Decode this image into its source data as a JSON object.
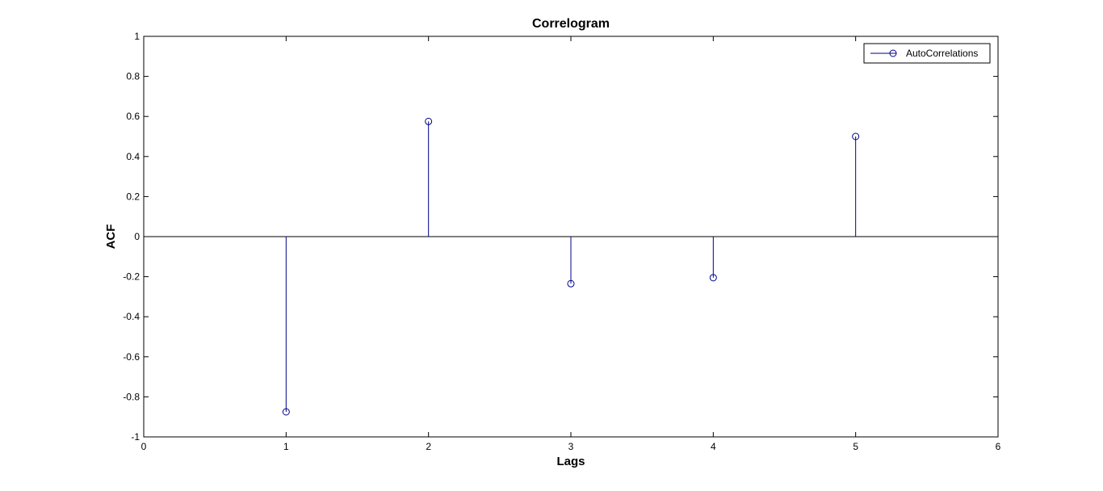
{
  "chart_data": {
    "type": "stem",
    "title": "Correlogram",
    "xlabel": "Lags",
    "ylabel": "ACF",
    "xlim": [
      0,
      6
    ],
    "ylim": [
      -1,
      1
    ],
    "x_ticks": [
      "0",
      "1",
      "2",
      "3",
      "4",
      "5",
      "6"
    ],
    "y_ticks": [
      "1",
      "0.8",
      "0.6",
      "0.4",
      "0.2",
      "0",
      "-0.2",
      "-0.4",
      "-0.6",
      "-0.8",
      "-1"
    ],
    "grid": false,
    "legend_position": "top-right",
    "baseline": 0,
    "series": [
      {
        "name": "AutoCorrelations",
        "color": "#00008b",
        "marker": "circle",
        "x": [
          1,
          2,
          3,
          4,
          5
        ],
        "y": [
          -0.875,
          0.575,
          -0.235,
          -0.205,
          0.5
        ]
      }
    ]
  }
}
